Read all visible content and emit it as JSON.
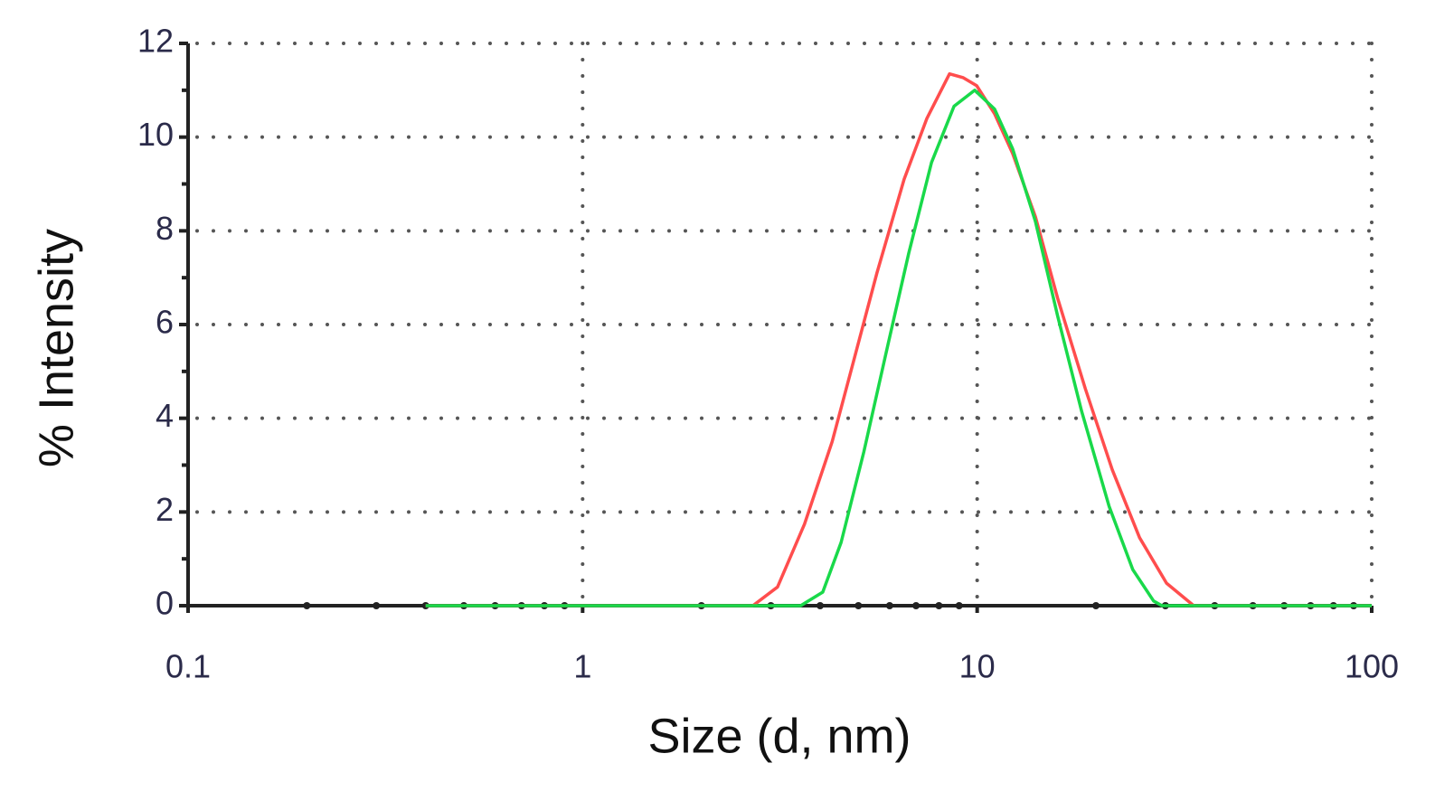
{
  "chart_data": {
    "type": "line",
    "xlabel": "Size (d, nm)",
    "ylabel": "% Intensity",
    "xscale": "log",
    "xlim": [
      0.1,
      100
    ],
    "xticks": [
      0.1,
      1,
      10,
      100
    ],
    "xminorticks": [
      0.2,
      0.3,
      0.4,
      0.5,
      0.6,
      0.7,
      0.8,
      0.9,
      2,
      3,
      4,
      5,
      6,
      7,
      8,
      9,
      20,
      30,
      40,
      50,
      60,
      70,
      80,
      90
    ],
    "ylim": [
      0,
      12
    ],
    "yticks": [
      0,
      2,
      4,
      6,
      8,
      10,
      12
    ],
    "yminorticks": [
      1,
      3,
      5,
      7,
      9,
      11
    ],
    "grid": true,
    "series": [
      {
        "color": "#ff4d4d",
        "x": [
          0.4,
          2.7,
          3.12,
          3.65,
          4.29,
          4.89,
          5.57,
          6.53,
          7.46,
          8.51,
          9.2,
          9.97,
          11.07,
          12.3,
          14.05,
          16.0,
          18.8,
          22.0,
          25.8,
          30.2,
          35.4,
          100
        ],
        "values": [
          0,
          0,
          0.4,
          1.74,
          3.5,
          5.3,
          7.1,
          9.1,
          10.4,
          11.35,
          11.27,
          11.1,
          10.5,
          9.65,
          8.3,
          6.56,
          4.63,
          2.9,
          1.45,
          0.48,
          0,
          0
        ]
      },
      {
        "color": "#19d94a",
        "x": [
          0.4,
          3.57,
          4.06,
          4.52,
          5.16,
          5.88,
          6.71,
          7.66,
          8.74,
          9.86,
          11.07,
          12.3,
          14.05,
          16.0,
          18.4,
          21.6,
          24.8,
          28.0,
          29.4,
          100
        ],
        "values": [
          0,
          0,
          0.29,
          1.35,
          3.28,
          5.4,
          7.53,
          9.46,
          10.66,
          11.0,
          10.6,
          9.75,
          8.2,
          6.18,
          4.15,
          2.12,
          0.77,
          0.1,
          0,
          0
        ]
      }
    ]
  }
}
